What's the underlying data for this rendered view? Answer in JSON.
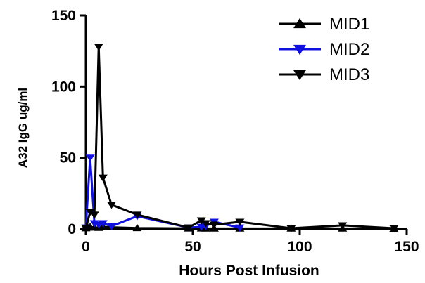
{
  "chart_data": {
    "type": "line",
    "title": "",
    "xlabel": "Hours Post Infusion",
    "ylabel": "A32 IgG ug/ml",
    "xlim": [
      0,
      150
    ],
    "ylim": [
      0,
      150
    ],
    "x_ticks": [
      0,
      50,
      100,
      150
    ],
    "y_ticks": [
      0,
      50,
      100,
      150
    ],
    "grid": false,
    "legend_position": "top-right",
    "series": [
      {
        "name": "MID1",
        "color": "#000000",
        "marker": "triangle-up",
        "x": [
          0,
          1,
          2,
          4,
          6,
          8,
          12,
          24,
          48,
          54,
          56,
          60,
          72,
          96,
          120,
          144
        ],
        "y": [
          0.5,
          1,
          1.5,
          1,
          0.8,
          1.5,
          1.2,
          0.6,
          0.4,
          0.4,
          0.3,
          0.3,
          0.3,
          0.3,
          0.3,
          0.2
        ]
      },
      {
        "name": "MID2",
        "color": "#1010e0",
        "marker": "triangle-down",
        "x": [
          0,
          2,
          4,
          6,
          8,
          12,
          24,
          48,
          54,
          56,
          60,
          72
        ],
        "y": [
          1,
          50,
          4,
          3,
          4,
          2,
          9,
          1,
          1.5,
          2,
          5,
          1
        ]
      },
      {
        "name": "MID3",
        "color": "#000000",
        "marker": "triangle-down",
        "x": [
          0,
          2,
          4,
          6,
          8,
          12,
          24,
          48,
          54,
          56,
          60,
          72,
          96,
          120,
          144
        ],
        "y": [
          0.5,
          12,
          10,
          128,
          36,
          17,
          10,
          1,
          6,
          4,
          3,
          5,
          0.5,
          2.5,
          0.5
        ]
      }
    ]
  }
}
